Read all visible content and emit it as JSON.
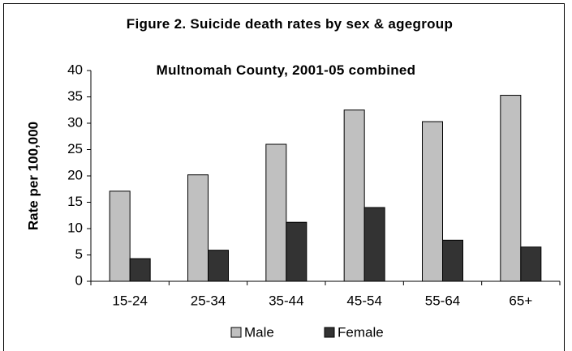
{
  "chart_data": {
    "type": "bar",
    "title": "Figure 2.  Suicide death rates by sex & agegroup",
    "subtitle": "Multnomah County, 2001-05 combined",
    "y_label": "Rate per 100,000",
    "categories": [
      "15-24",
      "25-34",
      "35-44",
      "45-54",
      "55-64",
      "65+"
    ],
    "series": [
      {
        "name": "Male",
        "color": "#c0c0c0",
        "values": [
          17.1,
          20.2,
          26,
          32.5,
          30.3,
          35.3
        ]
      },
      {
        "name": "Female",
        "color": "#333333",
        "values": [
          4.3,
          5.9,
          11.2,
          14,
          7.8,
          6.5
        ]
      }
    ],
    "ylim": [
      0,
      40
    ],
    "yticks": [
      0,
      5,
      10,
      15,
      20,
      25,
      30,
      35,
      40
    ],
    "grid": false,
    "legend": "bottom"
  }
}
